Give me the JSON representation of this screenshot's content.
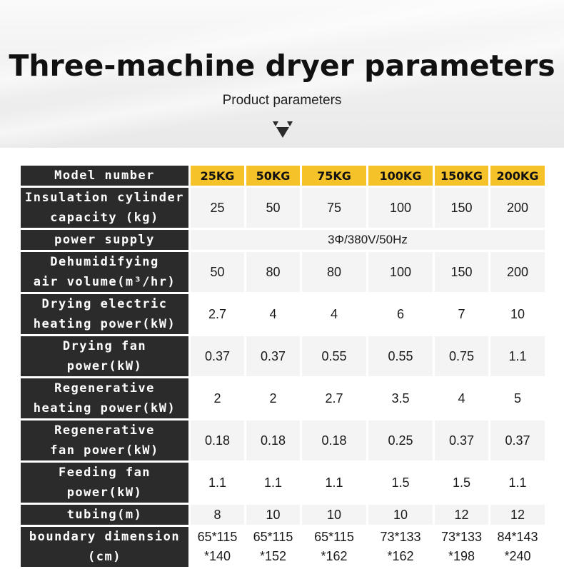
{
  "header": {
    "title": "Three-machine dryer parameters",
    "subtitle": "Product parameters",
    "divider_icon": "down-triangles-icon"
  },
  "colors": {
    "label_bg": "#2b2b2b",
    "header_bg": "#f6c229",
    "cell_bg": "#f4f4f4"
  },
  "table": {
    "model_label": "Model number",
    "models": [
      "25KG",
      "50KG",
      "75KG",
      "100KG",
      "150KG",
      "200KG"
    ],
    "rows": [
      {
        "label": [
          "Insulation cylinder",
          "capacity (kg)"
        ],
        "values": [
          "25",
          "50",
          "75",
          "100",
          "150",
          "200"
        ]
      },
      {
        "label": [
          "power supply"
        ],
        "values": [
          "3Φ/380V/50Hz"
        ]
      },
      {
        "label": [
          "Dehumidifying",
          "air volume(m³/hr)"
        ],
        "values": [
          "50",
          "80",
          "80",
          "100",
          "150",
          "200"
        ]
      },
      {
        "label": [
          "Drying electric",
          "heating power(kW)"
        ],
        "values": [
          "2.7",
          "4",
          "4",
          "6",
          "7",
          "10"
        ]
      },
      {
        "label": [
          "Drying fan",
          "power(kW)"
        ],
        "values": [
          "0.37",
          "0.37",
          "0.55",
          "0.55",
          "0.75",
          "1.1"
        ]
      },
      {
        "label": [
          "Regenerative",
          "heating power(kW)"
        ],
        "values": [
          "2",
          "2",
          "2.7",
          "3.5",
          "4",
          "5"
        ]
      },
      {
        "label": [
          "Regenerative",
          "fan power(kW)"
        ],
        "values": [
          "0.18",
          "0.18",
          "0.18",
          "0.25",
          "0.37",
          "0.37"
        ]
      },
      {
        "label": [
          "Feeding fan",
          "power(kW)"
        ],
        "values": [
          "1.1",
          "1.1",
          "1.1",
          "1.5",
          "1.5",
          "1.1"
        ]
      },
      {
        "label": [
          "tubing(m)"
        ],
        "values": [
          "8",
          "10",
          "10",
          "10",
          "12",
          "12"
        ]
      },
      {
        "label": [
          "boundary dimension",
          "(cm)"
        ],
        "values": [
          [
            "65*115",
            "*140"
          ],
          [
            "65*115",
            "*152"
          ],
          [
            "65*115",
            "*162"
          ],
          [
            "73*133",
            "*162"
          ],
          [
            "73*133",
            "*198"
          ],
          [
            "84*143",
            "*240"
          ]
        ]
      }
    ]
  }
}
